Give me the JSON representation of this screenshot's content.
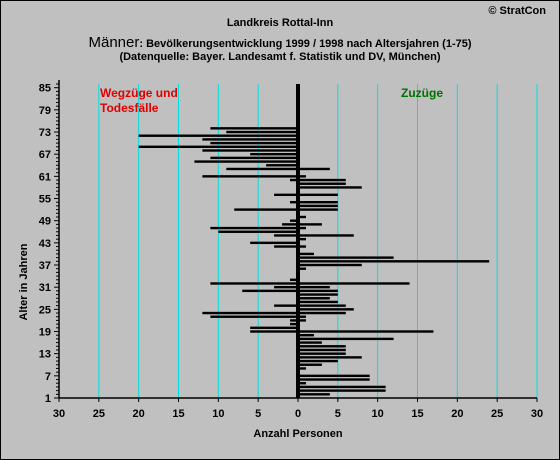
{
  "copyright": "© StratCon",
  "title_line1": "Landkreis Rottal-Inn",
  "title_line2_prefix": "Männer",
  "title_line2_rest": ": Bevölkerungsentwicklung 1999 / 1998  nach Altersjahren (1-75)",
  "title_line3": "(Datenquelle: Bayer. Landesamt f. Statistik und DV, München)",
  "annotations": {
    "left_line1": "Wegzüge und",
    "left_line2": "Todesfälle",
    "right": "Zuzüge"
  },
  "colors": {
    "background": "#c0c0c0",
    "bars": "#000000",
    "gridlines": "#00e0e0",
    "left_label": "#e00000",
    "right_label": "#007000"
  },
  "chart_data": {
    "type": "bar",
    "orientation": "horizontal",
    "xlabel": "Anzahl Personen",
    "ylabel": "Alter in Jahren",
    "xlim": [
      -30,
      30
    ],
    "ylim": [
      1,
      86
    ],
    "xticks": [
      -30,
      -25,
      -20,
      -15,
      -10,
      -5,
      0,
      5,
      10,
      15,
      20,
      25,
      30
    ],
    "xtick_labels": [
      "30",
      "25",
      "20",
      "15",
      "10",
      "5",
      "0",
      "5",
      "10",
      "15",
      "20",
      "25",
      "30"
    ],
    "yticks": [
      1,
      7,
      13,
      19,
      25,
      31,
      37,
      43,
      49,
      55,
      61,
      67,
      73,
      79,
      85
    ],
    "grid": "vertical",
    "ages": [
      1,
      2,
      3,
      4,
      5,
      6,
      7,
      8,
      9,
      10,
      11,
      12,
      13,
      14,
      15,
      16,
      17,
      18,
      19,
      20,
      21,
      22,
      23,
      24,
      25,
      26,
      27,
      28,
      29,
      30,
      31,
      32,
      33,
      34,
      35,
      36,
      37,
      38,
      39,
      40,
      41,
      42,
      43,
      44,
      45,
      46,
      47,
      48,
      49,
      50,
      51,
      52,
      53,
      54,
      55,
      56,
      57,
      58,
      59,
      60,
      61,
      62,
      63,
      64,
      65,
      66,
      67,
      68,
      69,
      70,
      71,
      72,
      73,
      74,
      75
    ],
    "series": [
      {
        "name": "Wegzüge und Todesfälle",
        "side": "left",
        "values": [
          0,
          0,
          0,
          0,
          0,
          0,
          0,
          0,
          0,
          0,
          0,
          0,
          0,
          0,
          0,
          0,
          0,
          0,
          6,
          6,
          1,
          1,
          11,
          12,
          0,
          3,
          0,
          0,
          0,
          7,
          3,
          11,
          1,
          0,
          0,
          0,
          0,
          0,
          0,
          0,
          0,
          3,
          6,
          0,
          3,
          10,
          11,
          2,
          1,
          0,
          0,
          8,
          0,
          1,
          0,
          3,
          0,
          0,
          0,
          1,
          12,
          0,
          9,
          4,
          13,
          11,
          6,
          12,
          20,
          11,
          12,
          20,
          9,
          11,
          0
        ]
      },
      {
        "name": "Zuzüge",
        "side": "right",
        "values": [
          0,
          4,
          11,
          11,
          1,
          9,
          9,
          0,
          1,
          3,
          5,
          8,
          6,
          6,
          6,
          3,
          12,
          2,
          17,
          0,
          0,
          1,
          1,
          6,
          7,
          6,
          5,
          4,
          5,
          5,
          4,
          14,
          0,
          0,
          0,
          1,
          8,
          24,
          12,
          2,
          0,
          1,
          0,
          1,
          7,
          0,
          1,
          3,
          0,
          1,
          0,
          5,
          5,
          5,
          0,
          5,
          0,
          8,
          6,
          6,
          1,
          0,
          4,
          0,
          0,
          0,
          0,
          0,
          0,
          0,
          0,
          0,
          0,
          0,
          0
        ]
      }
    ]
  }
}
